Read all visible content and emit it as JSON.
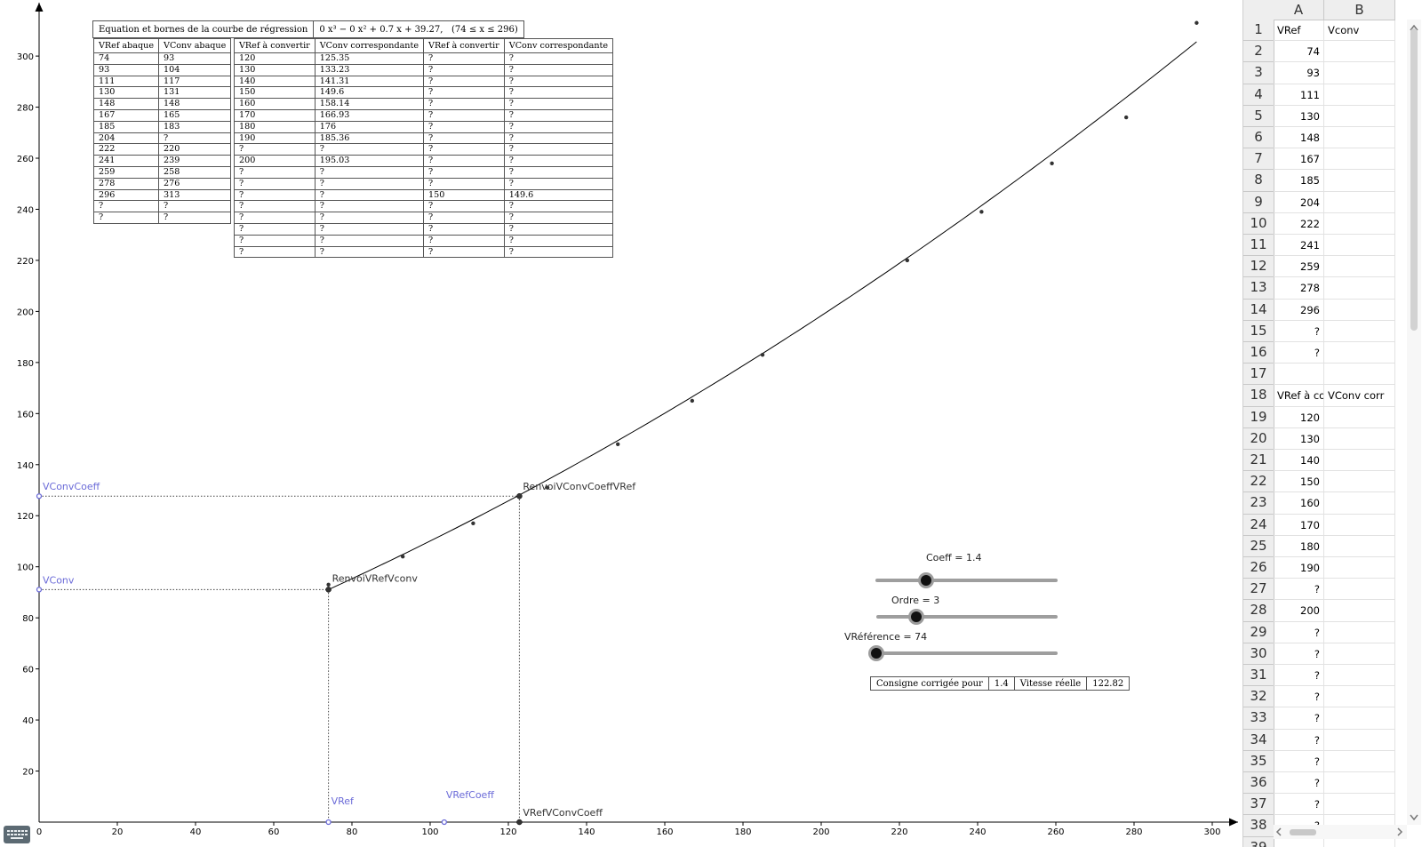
{
  "graph": {
    "axes": {
      "x_ticks": [
        "0",
        "20",
        "40",
        "60",
        "80",
        "100",
        "120",
        "140",
        "160",
        "180",
        "200",
        "220",
        "240",
        "260",
        "280",
        "300"
      ],
      "y_ticks": [
        "20",
        "40",
        "60",
        "80",
        "100",
        "120",
        "140",
        "160",
        "180",
        "200",
        "220",
        "240",
        "260",
        "280",
        "300"
      ]
    },
    "abaque_points": [
      [
        74,
        93
      ],
      [
        93,
        104
      ],
      [
        111,
        117
      ],
      [
        130,
        131
      ],
      [
        148,
        148
      ],
      [
        167,
        165
      ],
      [
        185,
        183
      ],
      [
        222,
        220
      ],
      [
        241,
        239
      ],
      [
        259,
        258
      ],
      [
        278,
        276
      ],
      [
        296,
        313
      ]
    ],
    "curve": {
      "a3": 0,
      "a2": 0,
      "a1": 0.7,
      "a0": 39.27,
      "xmin": 74,
      "xmax": 296
    },
    "point_labels": {
      "vconv_coeff": "VConvCoeff",
      "vconv": "VConv",
      "vref": "VRef",
      "vref_coeff": "VRefCoeff",
      "renvoi_vref_vconv": "RenvoiVRefVconv",
      "renvoi_vconv_coeff_vref": "RenvoiVConvCoeffVRef",
      "vref_vconv_coeff": "VRefVConvCoeff"
    },
    "point_values": {
      "vref": 74,
      "vconv": 91.07,
      "vref_coeff": 103.6,
      "vref_vconv_coeff": 122.82,
      "vconv_coeff": 127.66
    },
    "point_color": "#6b6bd8"
  },
  "equation": {
    "label": "Equation et bornes de la courbe de régression",
    "formula": "0 x³ − 0 x² + 0.7 x + 39.27,",
    "bounds": "(74 ≤ x ≤ 296)"
  },
  "abaque_table": {
    "headers": [
      "VRef abaque",
      "VConv abaque"
    ],
    "rows": [
      [
        "74",
        "93"
      ],
      [
        "93",
        "104"
      ],
      [
        "111",
        "117"
      ],
      [
        "130",
        "131"
      ],
      [
        "148",
        "148"
      ],
      [
        "167",
        "165"
      ],
      [
        "185",
        "183"
      ],
      [
        "204",
        "?"
      ],
      [
        "222",
        "220"
      ],
      [
        "241",
        "239"
      ],
      [
        "259",
        "258"
      ],
      [
        "278",
        "276"
      ],
      [
        "296",
        "313"
      ],
      [
        "?",
        "?"
      ],
      [
        "?",
        "?"
      ]
    ]
  },
  "conversion_table": {
    "headers": [
      "VRef à convertir",
      "VConv correspondante",
      "VRef à convertir",
      "VConv correspondante"
    ],
    "rows": [
      [
        "120",
        "125.35",
        "?",
        "?"
      ],
      [
        "130",
        "133.23",
        "?",
        "?"
      ],
      [
        "140",
        "141.31",
        "?",
        "?"
      ],
      [
        "150",
        "149.6",
        "?",
        "?"
      ],
      [
        "160",
        "158.14",
        "?",
        "?"
      ],
      [
        "170",
        "166.93",
        "?",
        "?"
      ],
      [
        "180",
        "176",
        "?",
        "?"
      ],
      [
        "190",
        "185.36",
        "?",
        "?"
      ],
      [
        "?",
        "?",
        "?",
        "?"
      ],
      [
        "200",
        "195.03",
        "?",
        "?"
      ],
      [
        "?",
        "?",
        "?",
        "?"
      ],
      [
        "?",
        "?",
        "?",
        "?"
      ],
      [
        "?",
        "?",
        "150",
        "149.6"
      ],
      [
        "?",
        "?",
        "?",
        "?"
      ],
      [
        "?",
        "?",
        "?",
        "?"
      ],
      [
        "?",
        "?",
        "?",
        "?"
      ],
      [
        "?",
        "?",
        "?",
        "?"
      ],
      [
        "?",
        "?",
        "?",
        "?"
      ]
    ]
  },
  "sliders": {
    "coeff": {
      "caption": "Coeff = 1.4",
      "min": 0,
      "max": 5,
      "value": 1.4
    },
    "ordre": {
      "caption": "Ordre = 3",
      "min": 1,
      "max": 10,
      "value": 3
    },
    "vreference": {
      "caption": "VRéférence = 74",
      "min": 74,
      "max": 296,
      "value": 74
    }
  },
  "status": {
    "label": "Consigne corrigée pour",
    "coeff": "1.4",
    "speed_label": "Vitesse réelle",
    "speed": "122.82"
  },
  "spreadsheet": {
    "columns": [
      "A",
      "B"
    ],
    "rows": [
      {
        "n": "1",
        "a": "VRef",
        "b": "Vconv",
        "type": "text"
      },
      {
        "n": "2",
        "a": "74",
        "b": "",
        "type": "num"
      },
      {
        "n": "3",
        "a": "93",
        "b": "",
        "type": "num"
      },
      {
        "n": "4",
        "a": "111",
        "b": "",
        "type": "num"
      },
      {
        "n": "5",
        "a": "130",
        "b": "",
        "type": "num"
      },
      {
        "n": "6",
        "a": "148",
        "b": "",
        "type": "num"
      },
      {
        "n": "7",
        "a": "167",
        "b": "",
        "type": "num"
      },
      {
        "n": "8",
        "a": "185",
        "b": "",
        "type": "num"
      },
      {
        "n": "9",
        "a": "204",
        "b": "",
        "type": "num"
      },
      {
        "n": "10",
        "a": "222",
        "b": "",
        "type": "num"
      },
      {
        "n": "11",
        "a": "241",
        "b": "",
        "type": "num"
      },
      {
        "n": "12",
        "a": "259",
        "b": "",
        "type": "num"
      },
      {
        "n": "13",
        "a": "278",
        "b": "",
        "type": "num"
      },
      {
        "n": "14",
        "a": "296",
        "b": "",
        "type": "num"
      },
      {
        "n": "15",
        "a": "?",
        "b": "",
        "type": "num"
      },
      {
        "n": "16",
        "a": "?",
        "b": "",
        "type": "num"
      },
      {
        "n": "17",
        "a": "",
        "b": "",
        "type": "num"
      },
      {
        "n": "18",
        "a": "VRef à conver",
        "b": "VConv corr",
        "type": "text"
      },
      {
        "n": "19",
        "a": "120",
        "b": "",
        "type": "num"
      },
      {
        "n": "20",
        "a": "130",
        "b": "",
        "type": "num"
      },
      {
        "n": "21",
        "a": "140",
        "b": "",
        "type": "num"
      },
      {
        "n": "22",
        "a": "150",
        "b": "",
        "type": "num"
      },
      {
        "n": "23",
        "a": "160",
        "b": "",
        "type": "num"
      },
      {
        "n": "24",
        "a": "170",
        "b": "",
        "type": "num"
      },
      {
        "n": "25",
        "a": "180",
        "b": "",
        "type": "num"
      },
      {
        "n": "26",
        "a": "190",
        "b": "",
        "type": "num"
      },
      {
        "n": "27",
        "a": "?",
        "b": "",
        "type": "num"
      },
      {
        "n": "28",
        "a": "200",
        "b": "",
        "type": "num"
      },
      {
        "n": "29",
        "a": "?",
        "b": "",
        "type": "num"
      },
      {
        "n": "30",
        "a": "?",
        "b": "",
        "type": "num"
      },
      {
        "n": "31",
        "a": "?",
        "b": "",
        "type": "num"
      },
      {
        "n": "32",
        "a": "?",
        "b": "",
        "type": "num"
      },
      {
        "n": "33",
        "a": "?",
        "b": "",
        "type": "num"
      },
      {
        "n": "34",
        "a": "?",
        "b": "",
        "type": "num"
      },
      {
        "n": "35",
        "a": "?",
        "b": "",
        "type": "num"
      },
      {
        "n": "36",
        "a": "?",
        "b": "",
        "type": "num"
      },
      {
        "n": "37",
        "a": "?",
        "b": "",
        "type": "num"
      },
      {
        "n": "38",
        "a": "?",
        "b": "",
        "type": "num"
      },
      {
        "n": "39",
        "a": "",
        "b": "",
        "type": "num"
      }
    ]
  },
  "icons": {
    "keyboard": "keyboard-icon",
    "scroll_up": "chevron-up-icon",
    "scroll_down": "chevron-down-icon",
    "scroll_left": "chevron-left-icon",
    "scroll_right": "chevron-right-icon"
  }
}
